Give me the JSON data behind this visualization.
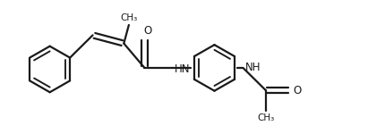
{
  "background_color": "#ffffff",
  "line_color": "#1a1a1a",
  "nh_color": "#1a1a1a",
  "line_width": 1.6,
  "figsize": [
    4.31,
    1.5
  ],
  "dpi": 100,
  "xlim": [
    0,
    8.6
  ],
  "ylim": [
    0,
    3.0
  ]
}
